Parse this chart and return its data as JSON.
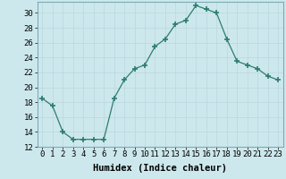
{
  "x": [
    0,
    1,
    2,
    3,
    4,
    5,
    6,
    7,
    8,
    9,
    10,
    11,
    12,
    13,
    14,
    15,
    16,
    17,
    18,
    19,
    20,
    21,
    22,
    23
  ],
  "y": [
    18.5,
    17.5,
    14.0,
    13.0,
    13.0,
    13.0,
    13.0,
    18.5,
    21.0,
    22.5,
    23.0,
    25.5,
    26.5,
    28.5,
    29.0,
    31.0,
    30.5,
    30.0,
    26.5,
    23.5,
    23.0,
    22.5,
    21.5,
    21.0
  ],
  "line_color": "#2e7d6e",
  "marker": "+",
  "marker_size": 4,
  "background_color": "#cde8ed",
  "grid_color": "#b8d8de",
  "xlabel": "Humidex (Indice chaleur)",
  "ylabel": "",
  "xlim": [
    -0.5,
    23.5
  ],
  "ylim": [
    12,
    31.5
  ],
  "yticks": [
    12,
    14,
    16,
    18,
    20,
    22,
    24,
    26,
    28,
    30
  ],
  "xticks": [
    0,
    1,
    2,
    3,
    4,
    5,
    6,
    7,
    8,
    9,
    10,
    11,
    12,
    13,
    14,
    15,
    16,
    17,
    18,
    19,
    20,
    21,
    22,
    23
  ],
  "tick_fontsize": 6.5,
  "label_fontsize": 7.5
}
